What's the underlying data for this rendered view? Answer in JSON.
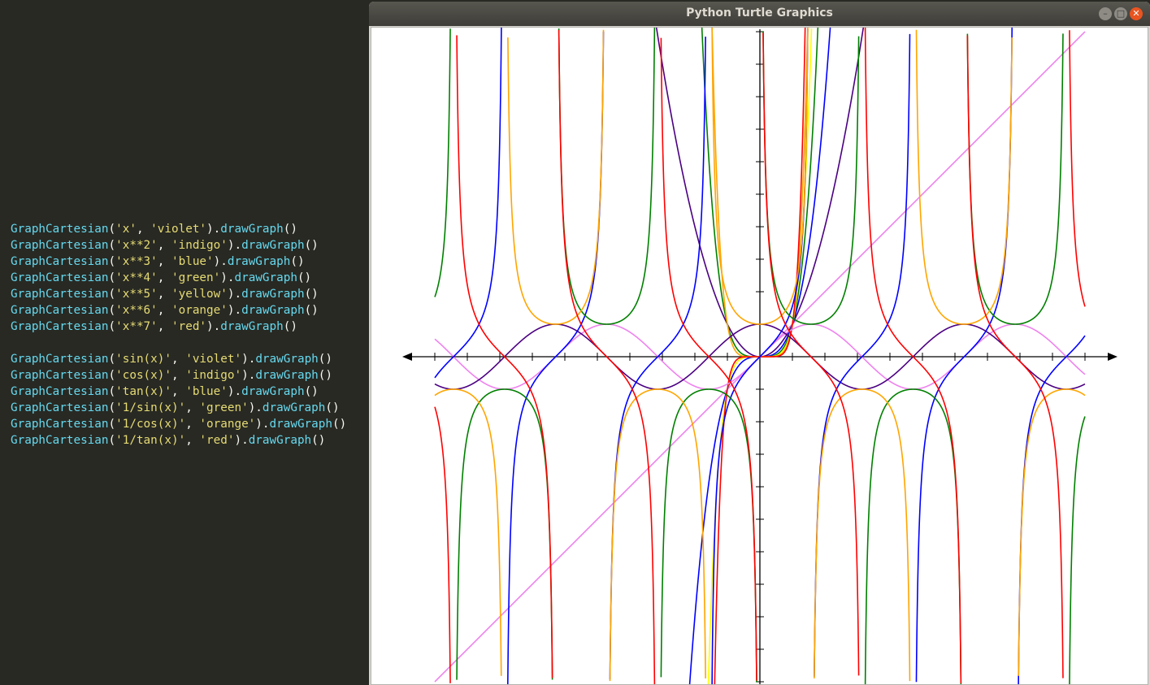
{
  "editor": {
    "lines": [
      {
        "fn": "GraphCartesian",
        "expr": "x",
        "color": "violet"
      },
      {
        "fn": "GraphCartesian",
        "expr": "x**2",
        "color": "indigo"
      },
      {
        "fn": "GraphCartesian",
        "expr": "x**3",
        "color": "blue"
      },
      {
        "fn": "GraphCartesian",
        "expr": "x**4",
        "color": "green"
      },
      {
        "fn": "GraphCartesian",
        "expr": "x**5",
        "color": "yellow"
      },
      {
        "fn": "GraphCartesian",
        "expr": "x**6",
        "color": "orange"
      },
      {
        "fn": "GraphCartesian",
        "expr": "x**7",
        "color": "red"
      },
      {
        "fn": "GraphCartesian",
        "expr": "sin(x)",
        "color": "violet"
      },
      {
        "fn": "GraphCartesian",
        "expr": "cos(x)",
        "color": "indigo"
      },
      {
        "fn": "GraphCartesian",
        "expr": "tan(x)",
        "color": "blue"
      },
      {
        "fn": "GraphCartesian",
        "expr": "1/sin(x)",
        "color": "green"
      },
      {
        "fn": "GraphCartesian",
        "expr": "1/cos(x)",
        "color": "orange"
      },
      {
        "fn": "GraphCartesian",
        "expr": "1/tan(x)",
        "color": "red"
      }
    ],
    "method": "drawGraph",
    "call_suffix": "()",
    "colors": {
      "background": "#282923",
      "function": "#66d9ef",
      "string": "#e6db74",
      "punctuation": "#f8f8f2"
    }
  },
  "window": {
    "title": "Python Turtle Graphics",
    "minimize_icon": "minimize-icon",
    "maximize_icon": "maximize-icon",
    "close_icon": "close-icon"
  },
  "chart_data": {
    "type": "line",
    "title": "",
    "xlabel": "",
    "ylabel": "",
    "xlim": [
      -10,
      10
    ],
    "ylim": [
      -10,
      10
    ],
    "x_tick_step": 1,
    "y_tick_step": 1,
    "grid": false,
    "series": [
      {
        "name": "x",
        "color": "violet"
      },
      {
        "name": "x**2",
        "color": "indigo"
      },
      {
        "name": "x**3",
        "color": "blue"
      },
      {
        "name": "x**4",
        "color": "green"
      },
      {
        "name": "x**5",
        "color": "yellow"
      },
      {
        "name": "x**6",
        "color": "orange"
      },
      {
        "name": "x**7",
        "color": "red"
      },
      {
        "name": "sin(x)",
        "color": "violet"
      },
      {
        "name": "cos(x)",
        "color": "indigo"
      },
      {
        "name": "tan(x)",
        "color": "blue"
      },
      {
        "name": "1/sin(x)",
        "color": "green"
      },
      {
        "name": "1/cos(x)",
        "color": "orange"
      },
      {
        "name": "1/tan(x)",
        "color": "red"
      }
    ]
  }
}
